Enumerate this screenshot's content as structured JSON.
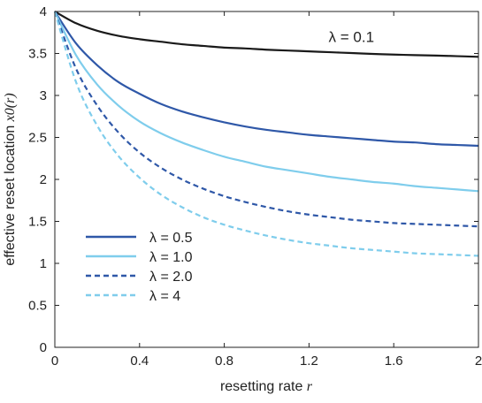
{
  "chart_data": {
    "type": "line",
    "xlabel": "resetting rate",
    "xlabel_var": "r",
    "ylabel": "effective reset location",
    "ylabel_var": "x0(r)",
    "xlim": [
      0,
      2
    ],
    "ylim": [
      0,
      4
    ],
    "xticks": [
      0,
      0.4,
      0.8,
      1.2,
      1.6,
      2
    ],
    "xtick_labels": [
      "0",
      "0.4",
      "0.8",
      "1.2",
      "1.6",
      "2"
    ],
    "yticks": [
      0,
      0.5,
      1,
      1.5,
      2,
      2.5,
      3,
      3.5,
      4
    ],
    "ytick_labels": [
      "0",
      "0.5",
      "1",
      "1.5",
      "2",
      "2.5",
      "3",
      "3.5",
      "4"
    ],
    "grid": false,
    "legend_placement": "lower-left",
    "x": [
      0,
      0.1,
      0.2,
      0.3,
      0.4,
      0.5,
      0.6,
      0.7,
      0.8,
      0.9,
      1.0,
      1.1,
      1.2,
      1.3,
      1.4,
      1.5,
      1.6,
      1.7,
      1.8,
      1.9,
      2.0
    ],
    "series": [
      {
        "name": "λ = 0.1",
        "color": "#1a1a1a",
        "dash": "solid",
        "in_legend": false,
        "values": [
          4.0,
          3.86,
          3.77,
          3.71,
          3.67,
          3.64,
          3.61,
          3.59,
          3.57,
          3.56,
          3.545,
          3.535,
          3.525,
          3.515,
          3.505,
          3.495,
          3.487,
          3.48,
          3.475,
          3.468,
          3.46
        ]
      },
      {
        "name": "λ = 0.5",
        "color": "#2f58a8",
        "dash": "solid",
        "in_legend": true,
        "values": [
          4.0,
          3.62,
          3.36,
          3.16,
          3.02,
          2.9,
          2.81,
          2.74,
          2.68,
          2.63,
          2.59,
          2.56,
          2.53,
          2.51,
          2.49,
          2.47,
          2.45,
          2.44,
          2.42,
          2.41,
          2.4
        ]
      },
      {
        "name": "λ = 1.0",
        "color": "#7fcdec",
        "dash": "solid",
        "in_legend": true,
        "values": [
          4.0,
          3.48,
          3.13,
          2.88,
          2.69,
          2.55,
          2.44,
          2.35,
          2.27,
          2.21,
          2.15,
          2.11,
          2.07,
          2.03,
          2.0,
          1.97,
          1.95,
          1.92,
          1.9,
          1.88,
          1.86
        ]
      },
      {
        "name": "λ = 2.0",
        "color": "#2f58a8",
        "dash": "dashed",
        "in_legend": true,
        "values": [
          4.0,
          3.32,
          2.88,
          2.56,
          2.32,
          2.14,
          2.0,
          1.89,
          1.8,
          1.73,
          1.67,
          1.62,
          1.58,
          1.55,
          1.52,
          1.5,
          1.48,
          1.47,
          1.46,
          1.45,
          1.44
        ]
      },
      {
        "name": "λ = 4",
        "color": "#7fcdec",
        "dash": "dashed",
        "in_legend": true,
        "values": [
          4.0,
          3.16,
          2.64,
          2.28,
          2.02,
          1.82,
          1.67,
          1.55,
          1.46,
          1.39,
          1.33,
          1.28,
          1.24,
          1.21,
          1.18,
          1.16,
          1.14,
          1.12,
          1.11,
          1.1,
          1.09
        ]
      }
    ],
    "annotations": [
      {
        "text": "λ = 0.1",
        "x": 1.4,
        "y": 3.7
      }
    ]
  }
}
